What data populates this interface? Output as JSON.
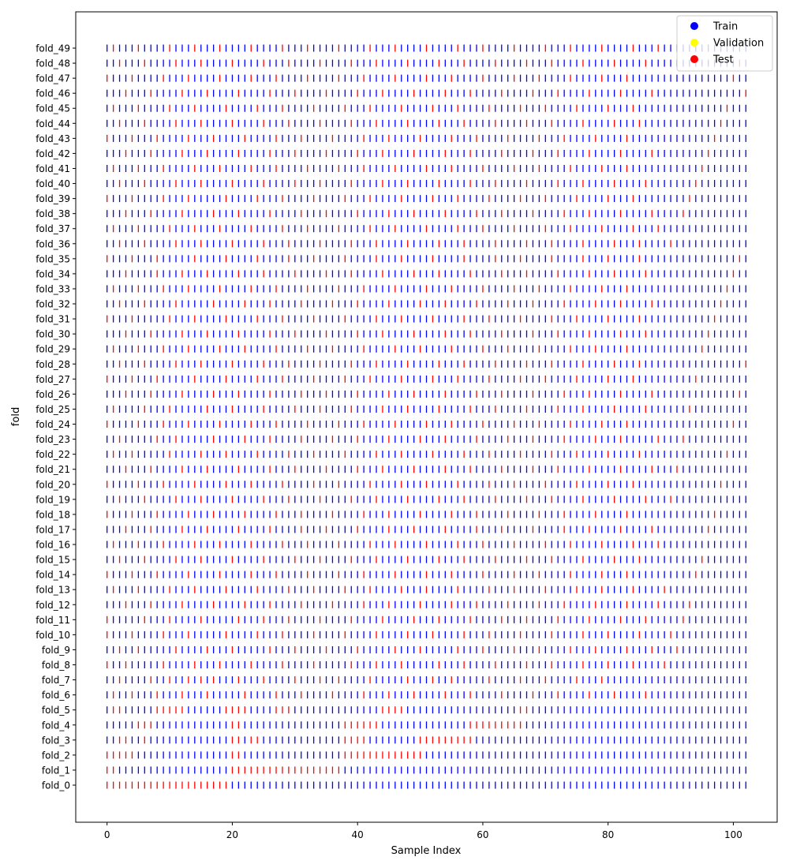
{
  "chart_data": {
    "type": "scatter",
    "marker": "vertical-line",
    "title": "",
    "xlabel": "Sample Index",
    "ylabel": "fold",
    "xlim": [
      -5,
      107
    ],
    "xticks": [
      0,
      20,
      40,
      60,
      80,
      100
    ],
    "x": [
      0,
      1,
      2,
      3,
      4,
      5,
      6,
      7,
      8,
      9,
      10,
      11,
      12,
      13,
      14,
      15,
      16,
      17,
      18,
      19,
      20,
      21,
      22,
      23,
      24,
      25,
      26,
      27,
      28,
      29,
      30,
      31,
      32,
      33,
      34,
      35,
      36,
      37,
      38,
      39,
      40,
      41,
      42,
      43,
      44,
      45,
      46,
      47,
      48,
      49,
      50,
      51,
      52,
      53,
      54,
      55,
      56,
      57,
      58,
      59,
      60,
      61,
      62,
      63,
      64,
      65,
      66,
      67,
      68,
      69,
      70,
      71,
      72,
      73,
      74,
      75,
      76,
      77,
      78,
      79,
      80,
      81,
      82,
      83,
      84,
      85,
      86,
      87,
      88,
      89,
      90,
      91,
      92,
      93,
      94,
      95,
      96,
      97,
      98,
      99,
      100,
      101,
      102
    ],
    "categories": [
      "fold_0",
      "fold_1",
      "fold_2",
      "fold_3",
      "fold_4",
      "fold_5",
      "fold_6",
      "fold_7",
      "fold_8",
      "fold_9",
      "fold_10",
      "fold_11",
      "fold_12",
      "fold_13",
      "fold_14",
      "fold_15",
      "fold_16",
      "fold_17",
      "fold_18",
      "fold_19",
      "fold_20",
      "fold_21",
      "fold_22",
      "fold_23",
      "fold_24",
      "fold_25",
      "fold_26",
      "fold_27",
      "fold_28",
      "fold_29",
      "fold_30",
      "fold_31",
      "fold_32",
      "fold_33",
      "fold_34",
      "fold_35",
      "fold_36",
      "fold_37",
      "fold_38",
      "fold_39",
      "fold_40",
      "fold_41",
      "fold_42",
      "fold_43",
      "fold_44",
      "fold_45",
      "fold_46",
      "fold_47",
      "fold_48",
      "fold_49"
    ],
    "test_indices": [
      [
        0,
        1,
        2,
        3,
        4,
        5,
        6,
        7,
        8,
        9,
        10,
        11,
        12,
        13,
        14,
        15,
        16,
        17,
        18,
        19
      ],
      [
        0,
        1,
        20,
        21,
        22,
        23,
        24,
        25,
        26,
        27,
        28,
        29,
        30,
        31,
        32,
        33,
        34,
        35,
        36,
        37
      ],
      [
        0,
        1,
        2,
        3,
        4,
        20,
        21,
        38,
        39,
        40,
        41,
        42,
        43,
        44,
        45,
        46,
        47,
        48,
        49,
        50
      ],
      [
        2,
        3,
        6,
        20,
        21,
        23,
        24,
        38,
        39,
        40,
        41,
        50,
        51,
        52,
        53,
        54,
        55,
        56,
        57,
        58
      ],
      [
        5,
        6,
        7,
        20,
        21,
        38,
        39,
        40,
        41,
        42,
        43,
        58,
        59,
        60,
        61,
        62,
        63,
        64,
        65,
        66
      ],
      [
        1,
        2,
        8,
        9,
        10,
        11,
        12,
        19,
        20,
        21,
        22,
        27,
        28,
        29,
        44,
        45,
        46,
        47,
        66,
        67
      ],
      [
        1,
        4,
        8,
        12,
        16,
        22,
        27,
        31,
        36,
        41,
        45,
        49,
        54,
        58,
        63,
        68,
        72,
        77,
        81,
        86
      ],
      [
        2,
        7,
        10,
        13,
        15,
        17,
        21,
        25,
        30,
        34,
        37,
        42,
        48,
        52,
        55,
        61,
        66,
        70,
        75,
        79
      ],
      [
        0,
        3,
        9,
        14,
        18,
        23,
        28,
        33,
        39,
        43,
        47,
        53,
        57,
        62,
        67,
        71,
        76,
        80,
        84,
        89
      ],
      [
        2,
        5,
        11,
        16,
        20,
        26,
        30,
        35,
        40,
        46,
        50,
        56,
        60,
        65,
        69,
        74,
        78,
        83,
        87,
        91
      ],
      [
        0,
        4,
        9,
        13,
        19,
        24,
        28,
        33,
        38,
        43,
        48,
        52,
        57,
        61,
        66,
        71,
        76,
        80,
        85,
        90
      ],
      [
        0,
        6,
        10,
        15,
        21,
        25,
        29,
        34,
        39,
        44,
        49,
        53,
        58,
        63,
        67,
        72,
        77,
        82,
        86,
        92
      ],
      [
        3,
        7,
        12,
        17,
        22,
        26,
        31,
        36,
        41,
        45,
        50,
        55,
        59,
        64,
        69,
        73,
        78,
        83,
        88,
        93
      ],
      [
        1,
        5,
        10,
        14,
        19,
        24,
        29,
        33,
        38,
        42,
        47,
        51,
        56,
        61,
        65,
        70,
        75,
        79,
        84,
        89
      ],
      [
        0,
        4,
        8,
        13,
        18,
        23,
        27,
        32,
        37,
        41,
        46,
        51,
        55,
        60,
        65,
        69,
        74,
        79,
        83,
        94
      ],
      [
        2,
        6,
        11,
        15,
        20,
        25,
        30,
        34,
        39,
        43,
        48,
        53,
        57,
        62,
        67,
        71,
        76,
        81,
        85,
        95
      ],
      [
        1,
        5,
        9,
        14,
        18,
        23,
        28,
        32,
        37,
        42,
        46,
        51,
        56,
        60,
        65,
        70,
        74,
        79,
        84,
        88
      ],
      [
        3,
        7,
        12,
        16,
        21,
        26,
        31,
        35,
        40,
        45,
        49,
        54,
        59,
        63,
        68,
        73,
        77,
        82,
        87,
        96
      ],
      [
        0,
        4,
        8,
        13,
        17,
        22,
        27,
        31,
        36,
        41,
        45,
        50,
        55,
        59,
        64,
        69,
        73,
        78,
        83,
        97
      ],
      [
        2,
        6,
        11,
        15,
        20,
        25,
        29,
        34,
        39,
        43,
        48,
        53,
        57,
        62,
        67,
        71,
        76,
        81,
        86,
        90
      ],
      [
        0,
        5,
        9,
        14,
        19,
        23,
        28,
        33,
        37,
        42,
        47,
        51,
        56,
        61,
        65,
        70,
        75,
        80,
        84,
        98
      ],
      [
        3,
        7,
        12,
        16,
        21,
        26,
        30,
        35,
        40,
        44,
        49,
        54,
        58,
        63,
        68,
        72,
        77,
        82,
        87,
        91
      ],
      [
        1,
        4,
        10,
        15,
        19,
        24,
        29,
        33,
        38,
        43,
        47,
        52,
        57,
        61,
        66,
        71,
        75,
        80,
        85,
        99
      ],
      [
        2,
        8,
        11,
        17,
        22,
        26,
        31,
        36,
        40,
        45,
        50,
        54,
        59,
        64,
        68,
        73,
        78,
        82,
        88,
        92
      ],
      [
        0,
        5,
        9,
        13,
        18,
        23,
        27,
        32,
        37,
        41,
        46,
        51,
        55,
        60,
        65,
        69,
        74,
        79,
        83,
        100
      ],
      [
        1,
        6,
        10,
        16,
        20,
        25,
        30,
        34,
        39,
        44,
        48,
        53,
        58,
        62,
        67,
        72,
        76,
        81,
        86,
        93
      ],
      [
        3,
        7,
        12,
        17,
        21,
        26,
        31,
        35,
        40,
        45,
        49,
        54,
        59,
        63,
        68,
        73,
        77,
        82,
        87,
        101
      ],
      [
        0,
        4,
        8,
        14,
        19,
        24,
        28,
        33,
        38,
        42,
        47,
        52,
        56,
        61,
        66,
        70,
        75,
        80,
        84,
        94
      ],
      [
        2,
        6,
        11,
        15,
        20,
        25,
        29,
        34,
        39,
        43,
        48,
        53,
        57,
        62,
        67,
        71,
        76,
        81,
        85,
        102
      ],
      [
        1,
        5,
        9,
        13,
        18,
        22,
        27,
        32,
        36,
        41,
        46,
        50,
        55,
        60,
        64,
        69,
        74,
        78,
        83,
        95
      ],
      [
        3,
        7,
        12,
        16,
        21,
        26,
        30,
        35,
        40,
        44,
        49,
        54,
        58,
        63,
        68,
        72,
        77,
        82,
        86,
        96
      ],
      [
        0,
        4,
        10,
        14,
        19,
        24,
        28,
        33,
        38,
        43,
        47,
        52,
        57,
        61,
        66,
        71,
        75,
        80,
        85,
        97
      ],
      [
        2,
        6,
        11,
        17,
        22,
        26,
        31,
        36,
        40,
        45,
        50,
        54,
        59,
        64,
        68,
        73,
        78,
        82,
        87,
        98
      ],
      [
        1,
        5,
        9,
        13,
        18,
        23,
        27,
        32,
        37,
        41,
        46,
        51,
        55,
        60,
        65,
        69,
        74,
        79,
        83,
        99
      ],
      [
        3,
        8,
        12,
        16,
        21,
        25,
        30,
        35,
        39,
        44,
        49,
        53,
        58,
        63,
        67,
        72,
        77,
        81,
        86,
        100
      ],
      [
        0,
        4,
        8,
        14,
        19,
        24,
        29,
        33,
        38,
        43,
        47,
        52,
        57,
        62,
        66,
        71,
        76,
        80,
        85,
        101
      ],
      [
        2,
        6,
        11,
        15,
        20,
        25,
        29,
        34,
        39,
        43,
        48,
        53,
        57,
        62,
        67,
        71,
        76,
        81,
        85,
        90
      ],
      [
        1,
        5,
        10,
        14,
        18,
        23,
        28,
        32,
        37,
        42,
        46,
        51,
        56,
        60,
        65,
        70,
        74,
        79,
        84,
        88
      ],
      [
        3,
        7,
        12,
        17,
        21,
        26,
        31,
        35,
        40,
        45,
        49,
        54,
        59,
        63,
        68,
        73,
        77,
        82,
        87,
        92
      ],
      [
        0,
        4,
        9,
        13,
        19,
        24,
        28,
        33,
        38,
        42,
        47,
        52,
        56,
        61,
        66,
        70,
        75,
        80,
        84,
        93
      ],
      [
        2,
        6,
        11,
        15,
        20,
        25,
        30,
        34,
        39,
        44,
        48,
        53,
        58,
        62,
        67,
        72,
        76,
        81,
        86,
        94
      ],
      [
        1,
        5,
        9,
        14,
        18,
        23,
        27,
        32,
        37,
        41,
        46,
        51,
        55,
        60,
        65,
        69,
        74,
        79,
        83,
        95
      ],
      [
        3,
        7,
        12,
        16,
        21,
        26,
        30,
        35,
        40,
        44,
        49,
        54,
        58,
        63,
        68,
        72,
        77,
        82,
        87,
        96
      ],
      [
        0,
        4,
        8,
        13,
        17,
        22,
        27,
        31,
        36,
        41,
        45,
        50,
        55,
        59,
        64,
        69,
        73,
        78,
        83,
        97
      ],
      [
        2,
        6,
        11,
        15,
        20,
        25,
        29,
        34,
        39,
        43,
        48,
        53,
        57,
        62,
        67,
        71,
        76,
        81,
        85,
        98
      ],
      [
        1,
        5,
        10,
        14,
        19,
        24,
        28,
        33,
        38,
        42,
        47,
        52,
        56,
        61,
        66,
        70,
        75,
        80,
        84,
        99
      ],
      [
        3,
        7,
        12,
        16,
        21,
        26,
        30,
        35,
        40,
        44,
        49,
        54,
        58,
        63,
        68,
        72,
        77,
        82,
        87,
        102
      ],
      [
        0,
        4,
        9,
        13,
        18,
        23,
        27,
        32,
        37,
        41,
        46,
        51,
        55,
        60,
        65,
        69,
        74,
        79,
        83,
        100
      ],
      [
        2,
        6,
        11,
        15,
        20,
        25,
        29,
        34,
        39,
        43,
        48,
        53,
        57,
        62,
        67,
        71,
        76,
        81,
        86,
        101
      ],
      [
        1,
        5,
        10,
        14,
        18,
        23,
        28,
        32,
        37,
        42,
        46,
        51,
        56,
        60,
        65,
        70,
        74,
        79,
        84,
        88
      ]
    ],
    "legend": {
      "placement": "top-right",
      "entries": [
        {
          "label": "Train",
          "color": "#0000ff"
        },
        {
          "label": "Validation",
          "color": "#ffff00"
        },
        {
          "label": "Test",
          "color": "#ff0000"
        }
      ]
    },
    "colors": {
      "train": "#0000ff",
      "validation": "#ffff00",
      "test": "#ff0000"
    },
    "grid": false
  }
}
